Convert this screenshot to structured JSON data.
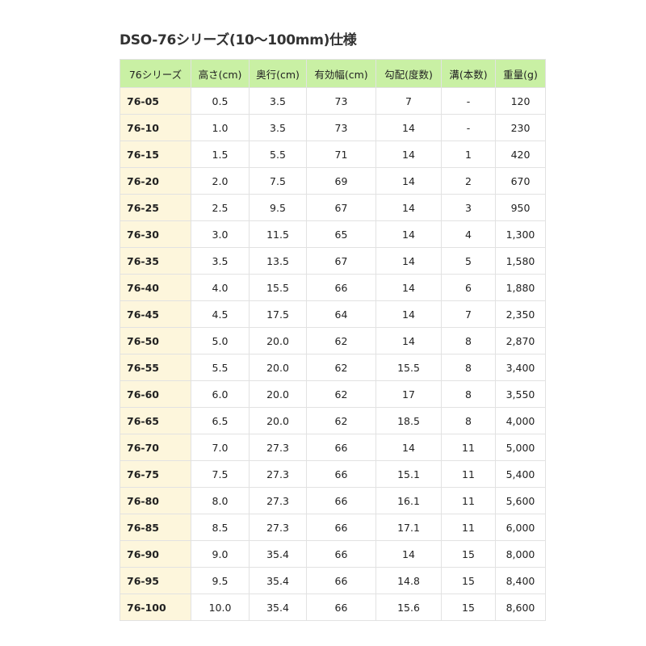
{
  "title": "DSO-76シリーズ(10〜100mm)仕様",
  "colors": {
    "header_bg": "#c9f0a4",
    "first_col_bg": "#fdf6dc",
    "border": "#e2e2e2"
  },
  "table": {
    "headers": [
      "76シリーズ",
      "高さ(cm)",
      "奥行(cm)",
      "有効幅(cm)",
      "勾配(度数)",
      "溝(本数)",
      "重量(g)"
    ],
    "rows": [
      [
        "76-05",
        "0.5",
        "3.5",
        "73",
        "7",
        "-",
        "120"
      ],
      [
        "76-10",
        "1.0",
        "3.5",
        "73",
        "14",
        "-",
        "230"
      ],
      [
        "76-15",
        "1.5",
        "5.5",
        "71",
        "14",
        "1",
        "420"
      ],
      [
        "76-20",
        "2.0",
        "7.5",
        "69",
        "14",
        "2",
        "670"
      ],
      [
        "76-25",
        "2.5",
        "9.5",
        "67",
        "14",
        "3",
        "950"
      ],
      [
        "76-30",
        "3.0",
        "11.5",
        "65",
        "14",
        "4",
        "1,300"
      ],
      [
        "76-35",
        "3.5",
        "13.5",
        "67",
        "14",
        "5",
        "1,580"
      ],
      [
        "76-40",
        "4.0",
        "15.5",
        "66",
        "14",
        "6",
        "1,880"
      ],
      [
        "76-45",
        "4.5",
        "17.5",
        "64",
        "14",
        "7",
        "2,350"
      ],
      [
        "76-50",
        "5.0",
        "20.0",
        "62",
        "14",
        "8",
        "2,870"
      ],
      [
        "76-55",
        "5.5",
        "20.0",
        "62",
        "15.5",
        "8",
        "3,400"
      ],
      [
        "76-60",
        "6.0",
        "20.0",
        "62",
        "17",
        "8",
        "3,550"
      ],
      [
        "76-65",
        "6.5",
        "20.0",
        "62",
        "18.5",
        "8",
        "4,000"
      ],
      [
        "76-70",
        "7.0",
        "27.3",
        "66",
        "14",
        "11",
        "5,000"
      ],
      [
        "76-75",
        "7.5",
        "27.3",
        "66",
        "15.1",
        "11",
        "5,400"
      ],
      [
        "76-80",
        "8.0",
        "27.3",
        "66",
        "16.1",
        "11",
        "5,600"
      ],
      [
        "76-85",
        "8.5",
        "27.3",
        "66",
        "17.1",
        "11",
        "6,000"
      ],
      [
        "76-90",
        "9.0",
        "35.4",
        "66",
        "14",
        "15",
        "8,000"
      ],
      [
        "76-95",
        "9.5",
        "35.4",
        "66",
        "14.8",
        "15",
        "8,400"
      ],
      [
        "76-100",
        "10.0",
        "35.4",
        "66",
        "15.6",
        "15",
        "8,600"
      ]
    ]
  }
}
